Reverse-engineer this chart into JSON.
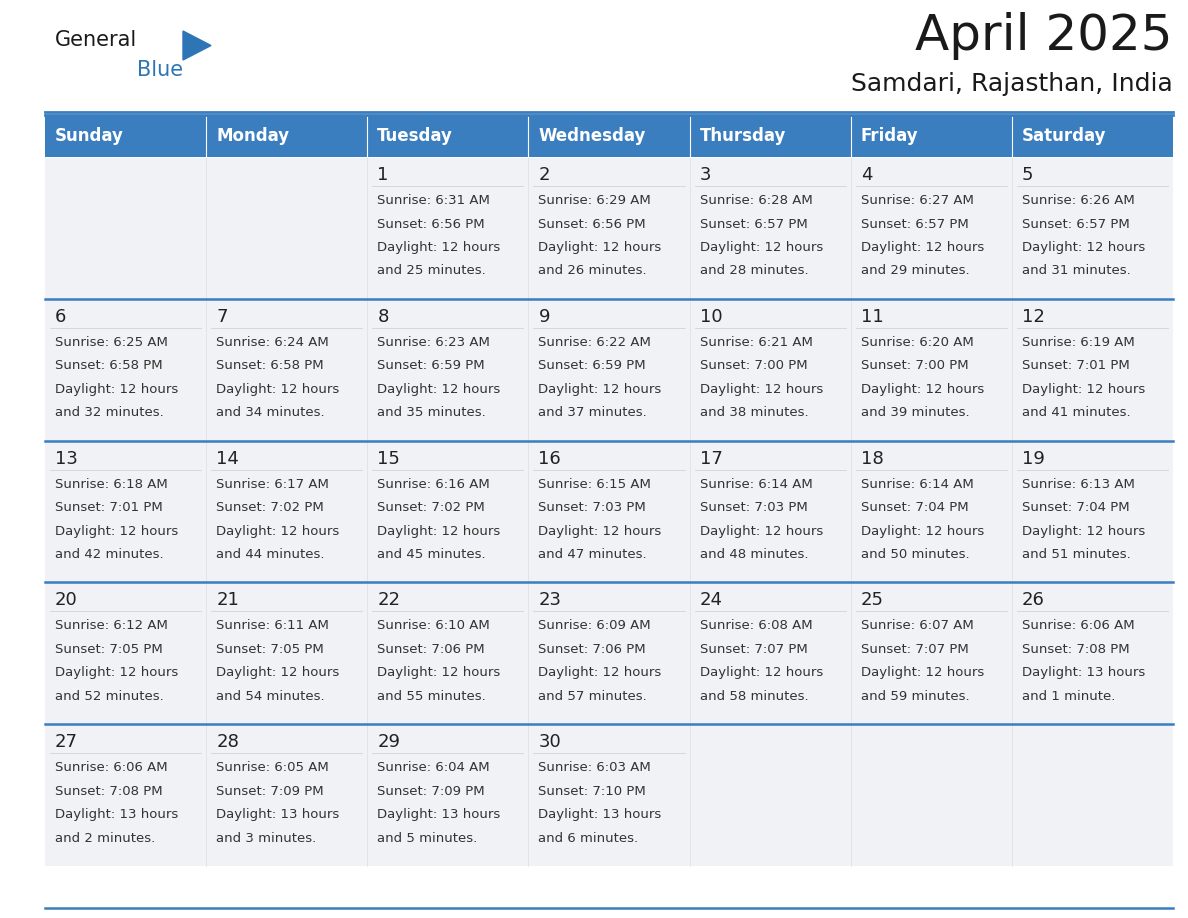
{
  "title": "April 2025",
  "subtitle": "Samdari, Rajasthan, India",
  "header_bg": "#3a7ebf",
  "header_text": "#ffffff",
  "day_names": [
    "Sunday",
    "Monday",
    "Tuesday",
    "Wednesday",
    "Thursday",
    "Friday",
    "Saturday"
  ],
  "cell_bg": "#f0f2f5",
  "border_color": "#3a7ebf",
  "cell_border_color": "#cccccc",
  "text_color": "#333333",
  "date_color": "#222222",
  "days": [
    {
      "date": 1,
      "col": 2,
      "row": 0,
      "sunrise": "6:31 AM",
      "sunset": "6:56 PM",
      "daylight": "12 hours and 25 minutes."
    },
    {
      "date": 2,
      "col": 3,
      "row": 0,
      "sunrise": "6:29 AM",
      "sunset": "6:56 PM",
      "daylight": "12 hours and 26 minutes."
    },
    {
      "date": 3,
      "col": 4,
      "row": 0,
      "sunrise": "6:28 AM",
      "sunset": "6:57 PM",
      "daylight": "12 hours and 28 minutes."
    },
    {
      "date": 4,
      "col": 5,
      "row": 0,
      "sunrise": "6:27 AM",
      "sunset": "6:57 PM",
      "daylight": "12 hours and 29 minutes."
    },
    {
      "date": 5,
      "col": 6,
      "row": 0,
      "sunrise": "6:26 AM",
      "sunset": "6:57 PM",
      "daylight": "12 hours and 31 minutes."
    },
    {
      "date": 6,
      "col": 0,
      "row": 1,
      "sunrise": "6:25 AM",
      "sunset": "6:58 PM",
      "daylight": "12 hours and 32 minutes."
    },
    {
      "date": 7,
      "col": 1,
      "row": 1,
      "sunrise": "6:24 AM",
      "sunset": "6:58 PM",
      "daylight": "12 hours and 34 minutes."
    },
    {
      "date": 8,
      "col": 2,
      "row": 1,
      "sunrise": "6:23 AM",
      "sunset": "6:59 PM",
      "daylight": "12 hours and 35 minutes."
    },
    {
      "date": 9,
      "col": 3,
      "row": 1,
      "sunrise": "6:22 AM",
      "sunset": "6:59 PM",
      "daylight": "12 hours and 37 minutes."
    },
    {
      "date": 10,
      "col": 4,
      "row": 1,
      "sunrise": "6:21 AM",
      "sunset": "7:00 PM",
      "daylight": "12 hours and 38 minutes."
    },
    {
      "date": 11,
      "col": 5,
      "row": 1,
      "sunrise": "6:20 AM",
      "sunset": "7:00 PM",
      "daylight": "12 hours and 39 minutes."
    },
    {
      "date": 12,
      "col": 6,
      "row": 1,
      "sunrise": "6:19 AM",
      "sunset": "7:01 PM",
      "daylight": "12 hours and 41 minutes."
    },
    {
      "date": 13,
      "col": 0,
      "row": 2,
      "sunrise": "6:18 AM",
      "sunset": "7:01 PM",
      "daylight": "12 hours and 42 minutes."
    },
    {
      "date": 14,
      "col": 1,
      "row": 2,
      "sunrise": "6:17 AM",
      "sunset": "7:02 PM",
      "daylight": "12 hours and 44 minutes."
    },
    {
      "date": 15,
      "col": 2,
      "row": 2,
      "sunrise": "6:16 AM",
      "sunset": "7:02 PM",
      "daylight": "12 hours and 45 minutes."
    },
    {
      "date": 16,
      "col": 3,
      "row": 2,
      "sunrise": "6:15 AM",
      "sunset": "7:03 PM",
      "daylight": "12 hours and 47 minutes."
    },
    {
      "date": 17,
      "col": 4,
      "row": 2,
      "sunrise": "6:14 AM",
      "sunset": "7:03 PM",
      "daylight": "12 hours and 48 minutes."
    },
    {
      "date": 18,
      "col": 5,
      "row": 2,
      "sunrise": "6:14 AM",
      "sunset": "7:04 PM",
      "daylight": "12 hours and 50 minutes."
    },
    {
      "date": 19,
      "col": 6,
      "row": 2,
      "sunrise": "6:13 AM",
      "sunset": "7:04 PM",
      "daylight": "12 hours and 51 minutes."
    },
    {
      "date": 20,
      "col": 0,
      "row": 3,
      "sunrise": "6:12 AM",
      "sunset": "7:05 PM",
      "daylight": "12 hours and 52 minutes."
    },
    {
      "date": 21,
      "col": 1,
      "row": 3,
      "sunrise": "6:11 AM",
      "sunset": "7:05 PM",
      "daylight": "12 hours and 54 minutes."
    },
    {
      "date": 22,
      "col": 2,
      "row": 3,
      "sunrise": "6:10 AM",
      "sunset": "7:06 PM",
      "daylight": "12 hours and 55 minutes."
    },
    {
      "date": 23,
      "col": 3,
      "row": 3,
      "sunrise": "6:09 AM",
      "sunset": "7:06 PM",
      "daylight": "12 hours and 57 minutes."
    },
    {
      "date": 24,
      "col": 4,
      "row": 3,
      "sunrise": "6:08 AM",
      "sunset": "7:07 PM",
      "daylight": "12 hours and 58 minutes."
    },
    {
      "date": 25,
      "col": 5,
      "row": 3,
      "sunrise": "6:07 AM",
      "sunset": "7:07 PM",
      "daylight": "12 hours and 59 minutes."
    },
    {
      "date": 26,
      "col": 6,
      "row": 3,
      "sunrise": "6:06 AM",
      "sunset": "7:08 PM",
      "daylight": "13 hours and 1 minute."
    },
    {
      "date": 27,
      "col": 0,
      "row": 4,
      "sunrise": "6:06 AM",
      "sunset": "7:08 PM",
      "daylight": "13 hours and 2 minutes."
    },
    {
      "date": 28,
      "col": 1,
      "row": 4,
      "sunrise": "6:05 AM",
      "sunset": "7:09 PM",
      "daylight": "13 hours and 3 minutes."
    },
    {
      "date": 29,
      "col": 2,
      "row": 4,
      "sunrise": "6:04 AM",
      "sunset": "7:09 PM",
      "daylight": "13 hours and 5 minutes."
    },
    {
      "date": 30,
      "col": 3,
      "row": 4,
      "sunrise": "6:03 AM",
      "sunset": "7:10 PM",
      "daylight": "13 hours and 6 minutes."
    }
  ],
  "num_rows": 5,
  "num_cols": 7,
  "title_fontsize": 36,
  "subtitle_fontsize": 18,
  "dayname_fontsize": 12,
  "date_fontsize": 13,
  "info_fontsize": 9.5
}
